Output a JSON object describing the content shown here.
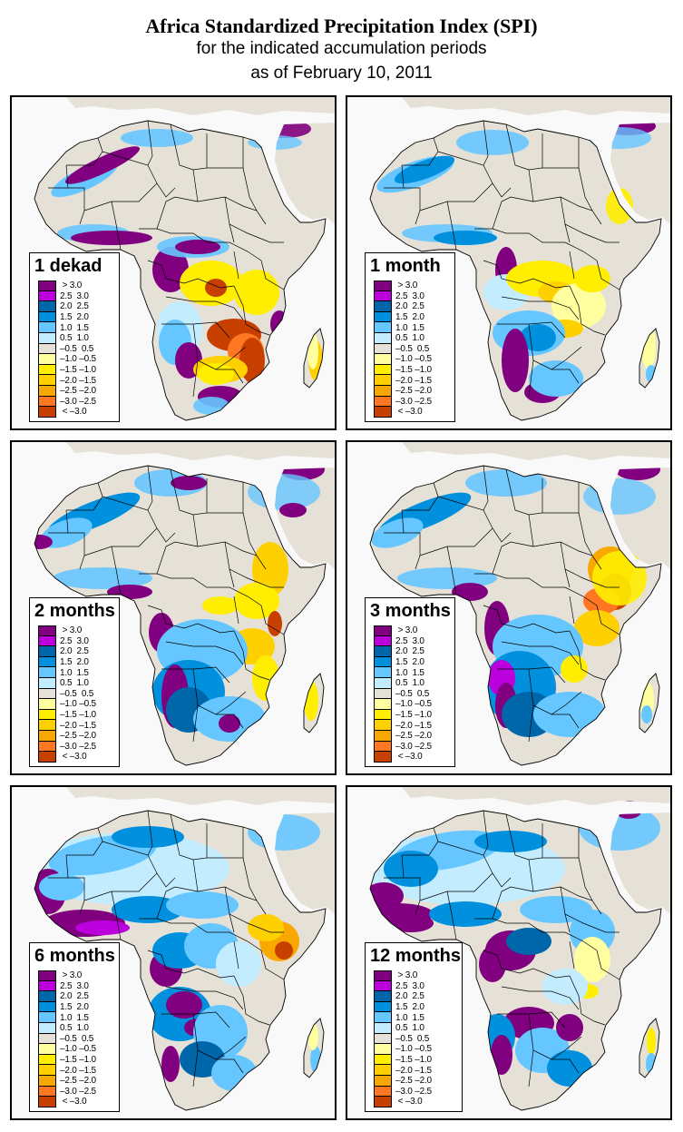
{
  "header": {
    "title": "Africa Standardized Precipitation Index (SPI)",
    "subtitle_line1": "for the indicated accumulation periods",
    "subtitle_line2": "as of February 10, 2011"
  },
  "legend_classes": [
    {
      "label": " > 3.0",
      "color": "#800080"
    },
    {
      "label": "2.5  3.0",
      "color": "#bb00dd"
    },
    {
      "label": "2.0  2.5",
      "color": "#0066aa"
    },
    {
      "label": "1.5  2.0",
      "color": "#0090dd"
    },
    {
      "label": "1.0  1.5",
      "color": "#66c6ff"
    },
    {
      "label": "0.5  1.0",
      "color": "#c4ecff"
    },
    {
      "label": "–0.5  0.5",
      "color": "#e6e1d6"
    },
    {
      "label": "–1.0 –0.5",
      "color": "#ffffa0"
    },
    {
      "label": "–1.5 –1.0",
      "color": "#ffee00"
    },
    {
      "label": "–2.0 –1.5",
      "color": "#ffd000"
    },
    {
      "label": "–2.5 –2.0",
      "color": "#f8a800"
    },
    {
      "label": "–3.0 –2.5",
      "color": "#ff7722"
    },
    {
      "label": " < –3.0",
      "color": "#c84000"
    }
  ],
  "colors": {
    "land_neutral": "#e6e1d6",
    "water": "#f9f9f9",
    "border": "#000000"
  },
  "panels": [
    {
      "period": "1 dekad",
      "dominant_classes": [
        "-0.5 0.5",
        "> 3.0",
        "< -3.0",
        "-2.0 -1.5"
      ],
      "description": "Wet (purple) across Gulf of Guinea, Angola, western South Africa and a band in Mauritania/Algeria; very dry (brown/orange) across Zambia, Zimbabwe, Mozambique and central DRC"
    },
    {
      "period": "1 month",
      "dominant_classes": [
        "-0.5 0.5",
        "1.5 2.0",
        "-1.5 -1.0",
        "> 3.0"
      ],
      "description": "Blue band across western Sahara; yellow dry anomalies over DRC, Tanzania and Zambia; purple over Namibia and South Africa"
    },
    {
      "period": "2 months",
      "dominant_classes": [
        "-0.5 0.5",
        "1.5 2.0",
        "-2.0 -1.5",
        "> 3.0"
      ],
      "description": "Blue wet band across Mauritania/Mali; dry orange over Ethiopia, Kenya and Somalia; wet blue/purple over southern Africa"
    },
    {
      "period": "3 months",
      "dominant_classes": [
        "-0.5 0.5",
        "1.5 2.0",
        "< -3.0",
        "> 3.0"
      ],
      "description": "Severe dry (brown) over Somalia, Kenya and Ethiopia; wet blue/purple over Angola, Namibia and South Africa"
    },
    {
      "period": "6 months",
      "dominant_classes": [
        "0.5 1.0",
        "1.5 2.0",
        "> 3.0",
        "-2.5 -2.0"
      ],
      "description": "Widespread wet conditions across West Africa (purple), Sahel and southern Africa; dry orange over Somalia and Kenya"
    },
    {
      "period": "12 months",
      "dominant_classes": [
        "0.5 1.0",
        "1.5 2.0",
        "> 3.0",
        "-1.0 -0.5"
      ],
      "description": "Widespread wet conditions; purple over West Africa coast, Congo basin and Angola; isolated yellow in East Africa and Madagascar"
    }
  ]
}
